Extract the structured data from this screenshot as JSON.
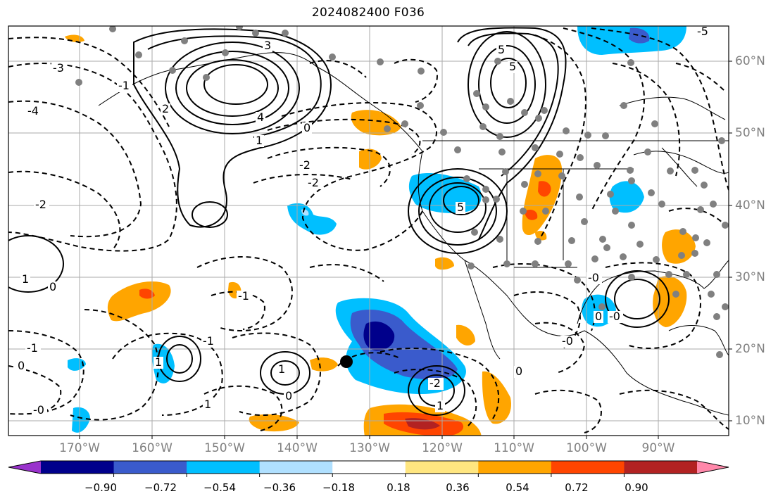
{
  "title": "2024082400 F036",
  "lat_labels": [
    "60°N",
    "50°N",
    "40°N",
    "30°N",
    "20°N",
    "10°N"
  ],
  "lon_labels": [
    "170°W",
    "160°W",
    "150°W",
    "140°W",
    "130°W",
    "120°W",
    "110°W",
    "100°W",
    "90°W"
  ],
  "colorbar": {
    "tick_labels": [
      "−0.90",
      "−0.72",
      "−0.54",
      "−0.36",
      "−0.18",
      "0.18",
      "0.36",
      "0.54",
      "0.72",
      "0.90"
    ],
    "colors": [
      "#9932cc",
      "#00008b",
      "#3a5bcc",
      "#00bfff",
      "#b0e0ff",
      "#ffffff",
      "#ffe680",
      "#ffa500",
      "#ff4500",
      "#b22222",
      "#ff88aa"
    ]
  },
  "contour_labels": [
    {
      "text": "3"
    },
    {
      "text": "4"
    },
    {
      "text": "1"
    },
    {
      "text": "2"
    },
    {
      "text": "0"
    },
    {
      "text": "-3"
    },
    {
      "text": "-4"
    },
    {
      "text": "-2"
    },
    {
      "text": "-1"
    },
    {
      "text": "5"
    },
    {
      "text": "-5"
    },
    {
      "text": "-2"
    },
    {
      "text": "-2"
    },
    {
      "text": "1"
    },
    {
      "text": "0"
    },
    {
      "text": "1"
    },
    {
      "text": "-1"
    },
    {
      "text": "0"
    },
    {
      "text": "1"
    },
    {
      "text": "-1"
    },
    {
      "text": "-2"
    },
    {
      "text": "-0"
    },
    {
      "text": "1"
    },
    {
      "text": "0"
    },
    {
      "text": "-1"
    },
    {
      "text": "0"
    },
    {
      "text": "-0"
    },
    {
      "text": "-0"
    },
    {
      "text": "-0"
    },
    {
      "text": "1"
    },
    {
      "text": "5"
    },
    {
      "text": "5"
    },
    {
      "text": "0"
    }
  ]
}
